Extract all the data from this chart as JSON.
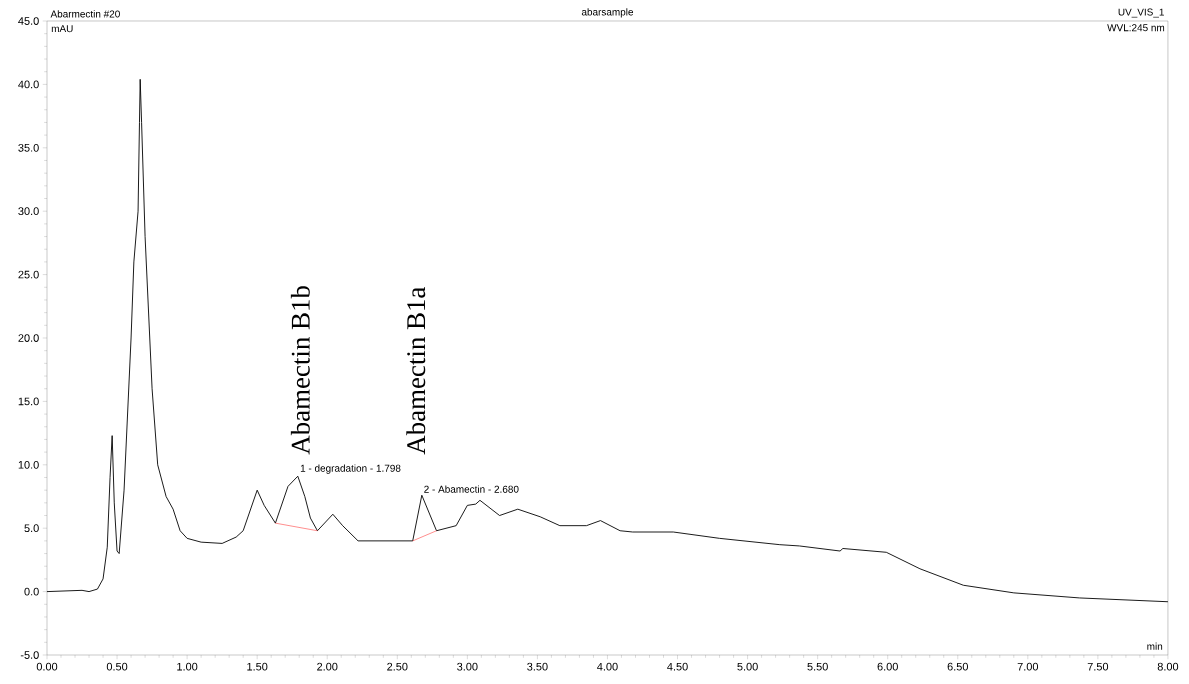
{
  "chart_data": {
    "type": "line",
    "title": "abarsample",
    "xlabel": "min",
    "ylabel": "mAU",
    "xlim": [
      0,
      8
    ],
    "ylim": [
      -5,
      45
    ],
    "xticks": [
      {
        "value": 0,
        "label": "0.00"
      },
      {
        "value": 0.5,
        "label": "0.50"
      },
      {
        "value": 1,
        "label": "1.00"
      },
      {
        "value": 1.5,
        "label": "1.50"
      },
      {
        "value": 2,
        "label": "2.00"
      },
      {
        "value": 2.5,
        "label": "2.50"
      },
      {
        "value": 3,
        "label": "3.00"
      },
      {
        "value": 3.5,
        "label": "3.50"
      },
      {
        "value": 4,
        "label": "4.00"
      },
      {
        "value": 4.5,
        "label": "4.50"
      },
      {
        "value": 5,
        "label": "5.00"
      },
      {
        "value": 5.5,
        "label": "5.50"
      },
      {
        "value": 6,
        "label": "6.00"
      },
      {
        "value": 6.5,
        "label": "6.50"
      },
      {
        "value": 7,
        "label": "7.00"
      },
      {
        "value": 7.5,
        "label": "7.50"
      },
      {
        "value": 8,
        "label": "8.00"
      }
    ],
    "yticks": [
      {
        "value": -5,
        "label": "-5.0"
      },
      {
        "value": 0,
        "label": "0.0"
      },
      {
        "value": 5,
        "label": "5.0"
      },
      {
        "value": 10,
        "label": "10.0"
      },
      {
        "value": 15,
        "label": "15.0"
      },
      {
        "value": 20,
        "label": "20.0"
      },
      {
        "value": 25,
        "label": "25.0"
      },
      {
        "value": 30,
        "label": "30.0"
      },
      {
        "value": 35,
        "label": "35.0"
      },
      {
        "value": 40,
        "label": "40.0"
      },
      {
        "value": 45,
        "label": "45.0"
      }
    ],
    "series": [
      {
        "color": "#000000",
        "x": [
          0,
          0.25,
          0.3,
          0.36,
          0.4,
          0.43,
          0.45,
          0.465,
          0.48,
          0.5,
          0.515,
          0.55,
          0.6,
          0.62,
          0.65,
          0.66,
          0.665,
          0.675,
          0.7,
          0.75,
          0.79,
          0.85,
          0.9,
          0.95,
          1.0,
          1.1,
          1.25,
          1.35,
          1.4,
          1.5,
          1.55,
          1.63,
          1.72,
          1.79,
          1.84,
          1.88,
          1.93,
          2.04,
          2.11,
          2.22,
          2.5,
          2.61,
          2.675,
          2.78,
          2.92,
          3.0,
          3.06,
          3.09,
          3.23,
          3.36,
          3.52,
          3.66,
          3.85,
          3.95,
          4.09,
          4.18,
          4.47,
          4.8,
          5.23,
          5.37,
          5.66,
          5.68,
          5.99,
          6.23,
          6.54,
          6.9,
          7.37,
          8.0
        ],
        "values": [
          0,
          0.1,
          0,
          0.2,
          1.0,
          3.5,
          9,
          12.3,
          7,
          3.2,
          3.0,
          8,
          20,
          26,
          30,
          37,
          40.4,
          37,
          28,
          16,
          10,
          7.5,
          6.5,
          4.8,
          4.2,
          3.9,
          3.8,
          4.3,
          4.8,
          8.0,
          6.8,
          5.4,
          8.3,
          9.1,
          7.5,
          5.8,
          4.8,
          6.1,
          5.2,
          4.0,
          4.0,
          4.0,
          7.6,
          4.8,
          5.2,
          6.8,
          6.9,
          7.2,
          6.0,
          6.5,
          5.9,
          5.2,
          5.2,
          5.6,
          4.8,
          4.7,
          4.7,
          4.2,
          3.7,
          3.6,
          3.2,
          3.4,
          3.1,
          1.8,
          0.5,
          -0.1,
          -0.5,
          -0.8
        ]
      },
      {
        "color": "#ff0000",
        "x": [
          1.63,
          1.93
        ],
        "values": [
          5.4,
          4.8
        ]
      },
      {
        "color": "#ff0000",
        "x": [
          2.61,
          2.78
        ],
        "values": [
          4.0,
          4.8
        ]
      }
    ],
    "annotations": [
      "Abarmectin #20",
      "UV_VIS_1",
      "WVL:245 nm",
      "Abamectin B1b",
      "Abamectin B1a",
      {
        "text": "1 - degradation - 1.798",
        "x": 1.798,
        "y": 9.2
      },
      {
        "text": "2 - Abamectin - 2.680",
        "x": 2.68,
        "y": 7.7
      }
    ]
  }
}
